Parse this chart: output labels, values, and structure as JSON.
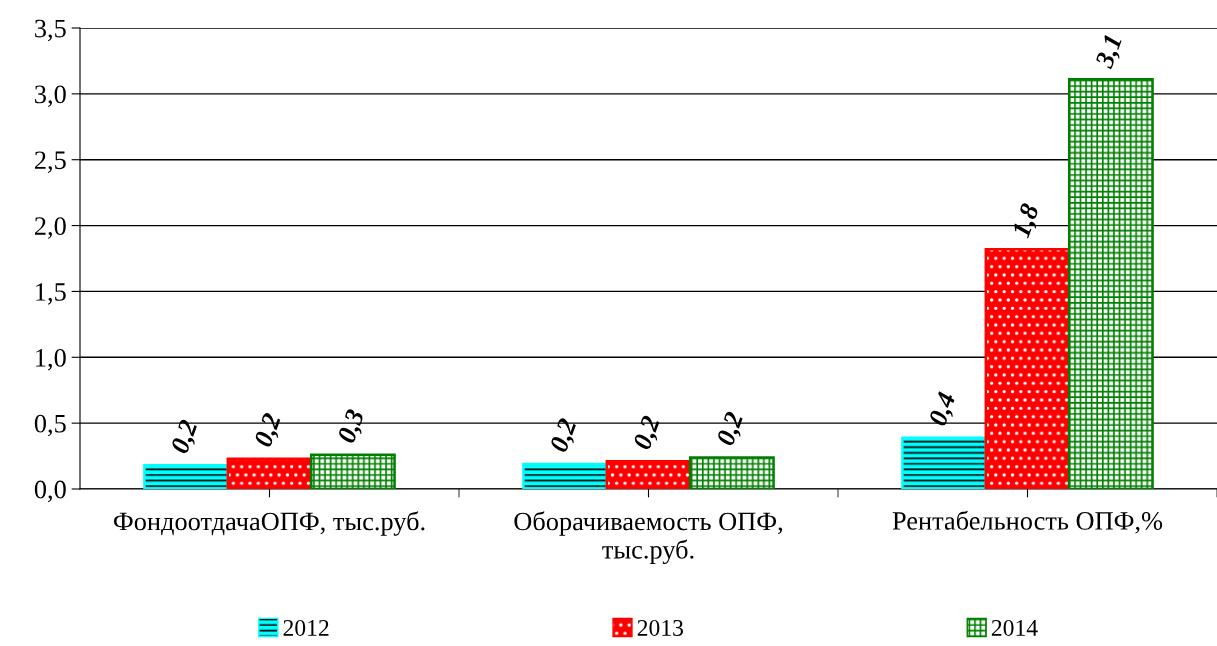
{
  "chart_data": {
    "type": "bar",
    "categories": [
      "ФондоотдачаОПФ, тыс.руб.",
      "Оборачиваемость ОПФ,\nтыс.руб.",
      "Рентабельность ОПФ,%"
    ],
    "series": [
      {
        "name": "2012",
        "color": "#00ffff",
        "values": [
          0.18,
          0.19,
          0.39
        ],
        "value_labels": [
          "0,2",
          "0,2",
          "0,4"
        ]
      },
      {
        "name": "2013",
        "color": "#ff0000",
        "values": [
          0.23,
          0.21,
          1.82
        ],
        "value_labels": [
          "0,2",
          "0,2",
          "1,8"
        ]
      },
      {
        "name": "2014",
        "color": "#008000",
        "values": [
          0.26,
          0.24,
          3.11
        ],
        "value_labels": [
          "0,3",
          "0,2",
          "3,1"
        ]
      }
    ],
    "ylim": [
      0,
      3.5
    ],
    "yticks": [
      {
        "value": 0,
        "label": "0,0"
      },
      {
        "value": 0.5,
        "label": "0,5"
      },
      {
        "value": 1,
        "label": "1,0"
      },
      {
        "value": 1.5,
        "label": "1,5"
      },
      {
        "value": 2,
        "label": "2,0"
      },
      {
        "value": 2.5,
        "label": "2,5"
      },
      {
        "value": 3,
        "label": "3,0"
      },
      {
        "value": 3.5,
        "label": "3,5"
      }
    ],
    "grid": "y",
    "legend": "bottom"
  }
}
